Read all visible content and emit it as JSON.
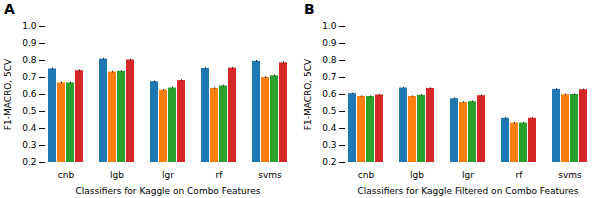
{
  "chart_data": [
    {
      "type": "bar",
      "title": "A",
      "xlabel": "Classifiers for Kaggle on Combo Features",
      "ylabel": "F1-MACRO, 5CV",
      "categories": [
        "cnb",
        "lgb",
        "lgr",
        "rf",
        "svms"
      ],
      "series": [
        {
          "color": "#1f77b4",
          "values": [
            0.75,
            0.808,
            0.675,
            0.753,
            0.795
          ],
          "errors": [
            0.006,
            0.005,
            0.005,
            0.005,
            0.005
          ]
        },
        {
          "color": "#ff7f0e",
          "values": [
            0.668,
            0.732,
            0.625,
            0.635,
            0.7
          ],
          "errors": [
            0.005,
            0.005,
            0.005,
            0.005,
            0.005
          ]
        },
        {
          "color": "#2ca02c",
          "values": [
            0.668,
            0.736,
            0.638,
            0.65,
            0.71
          ],
          "errors": [
            0.005,
            0.005,
            0.005,
            0.005,
            0.005
          ]
        },
        {
          "color": "#d62728",
          "values": [
            0.74,
            0.803,
            0.682,
            0.755,
            0.786
          ],
          "errors": [
            0.005,
            0.005,
            0.005,
            0.005,
            0.005
          ]
        }
      ],
      "ylim": [
        0.2,
        1.0
      ],
      "yticks": [
        0.2,
        0.3,
        0.4,
        0.5,
        0.6,
        0.7,
        0.8,
        0.9,
        {
          "value": 1.0,
          "label": "1.0"
        }
      ],
      "grid": false
    },
    {
      "type": "bar",
      "title": "B",
      "xlabel": "Classifiers for Kaggle Filtered on Combo Features",
      "ylabel": "F1-MACRO, 5CV",
      "categories": [
        "cnb",
        "lgb",
        "lgr",
        "rf",
        "svms"
      ],
      "series": [
        {
          "color": "#1f77b4",
          "values": [
            0.605,
            0.638,
            0.575,
            0.46,
            0.63
          ],
          "errors": [
            0.004,
            0.004,
            0.004,
            0.004,
            0.004
          ]
        },
        {
          "color": "#ff7f0e",
          "values": [
            0.588,
            0.588,
            0.553,
            0.432,
            0.598
          ],
          "errors": [
            0.004,
            0.004,
            0.004,
            0.004,
            0.004
          ]
        },
        {
          "color": "#2ca02c",
          "values": [
            0.588,
            0.595,
            0.558,
            0.432,
            0.6
          ],
          "errors": [
            0.004,
            0.004,
            0.004,
            0.004,
            0.004
          ]
        },
        {
          "color": "#d62728",
          "values": [
            0.597,
            0.635,
            0.593,
            0.46,
            0.628
          ],
          "errors": [
            0.004,
            0.004,
            0.004,
            0.004,
            0.004
          ]
        }
      ],
      "ylim": [
        0.2,
        1.0
      ],
      "yticks": [
        0.2,
        0.3,
        0.4,
        0.5,
        0.6,
        0.7,
        0.8,
        0.9,
        {
          "value": 1.0,
          "label": "1.0"
        }
      ],
      "grid": false
    }
  ]
}
